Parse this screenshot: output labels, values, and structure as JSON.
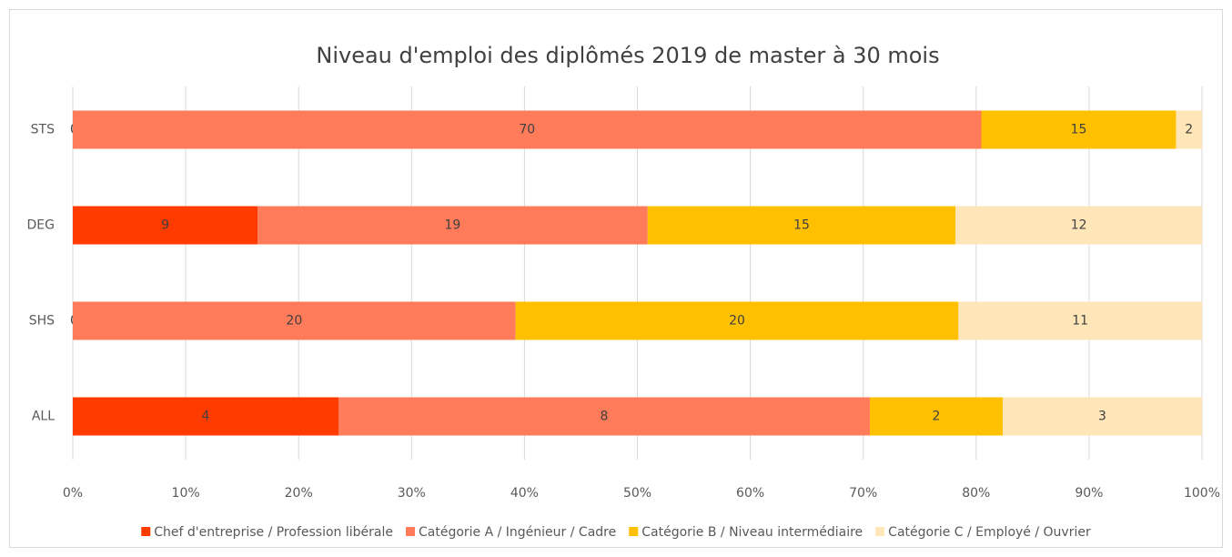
{
  "chart_data": {
    "type": "bar",
    "orientation": "horizontal",
    "stacking": "percent",
    "title": "Niveau d'emploi des diplômés 2019 de master à 30 mois",
    "categories": [
      "STS",
      "DEG",
      "SHS",
      "ALL"
    ],
    "series": [
      {
        "name": "Chef d'entreprise / Profession libérale",
        "color": "#ff3b00",
        "values": [
          0,
          9,
          0,
          4
        ]
      },
      {
        "name": "Catégorie A / Ingénieur / Cadre",
        "color": "#ff7b5a",
        "values": [
          70,
          19,
          20,
          8
        ]
      },
      {
        "name": "Catégorie B / Niveau intermédiaire",
        "color": "#ffc000",
        "values": [
          15,
          15,
          20,
          2
        ]
      },
      {
        "name": "Catégorie C / Employé / Ouvrier",
        "color": "#ffe6b8",
        "values": [
          2,
          12,
          11,
          3
        ]
      }
    ],
    "xlim": [
      0,
      100
    ],
    "xticks": [
      {
        "value": 0,
        "label": "0%"
      },
      {
        "value": 10,
        "label": "10%"
      },
      {
        "value": 20,
        "label": "20%"
      },
      {
        "value": 30,
        "label": "30%"
      },
      {
        "value": 40,
        "label": "40%"
      },
      {
        "value": 50,
        "label": "50%"
      },
      {
        "value": 60,
        "label": "60%"
      },
      {
        "value": 70,
        "label": "70%"
      },
      {
        "value": 80,
        "label": "80%"
      },
      {
        "value": 90,
        "label": "90%"
      },
      {
        "value": 100,
        "label": "100%"
      }
    ],
    "grid": true,
    "legend": "bottom"
  }
}
